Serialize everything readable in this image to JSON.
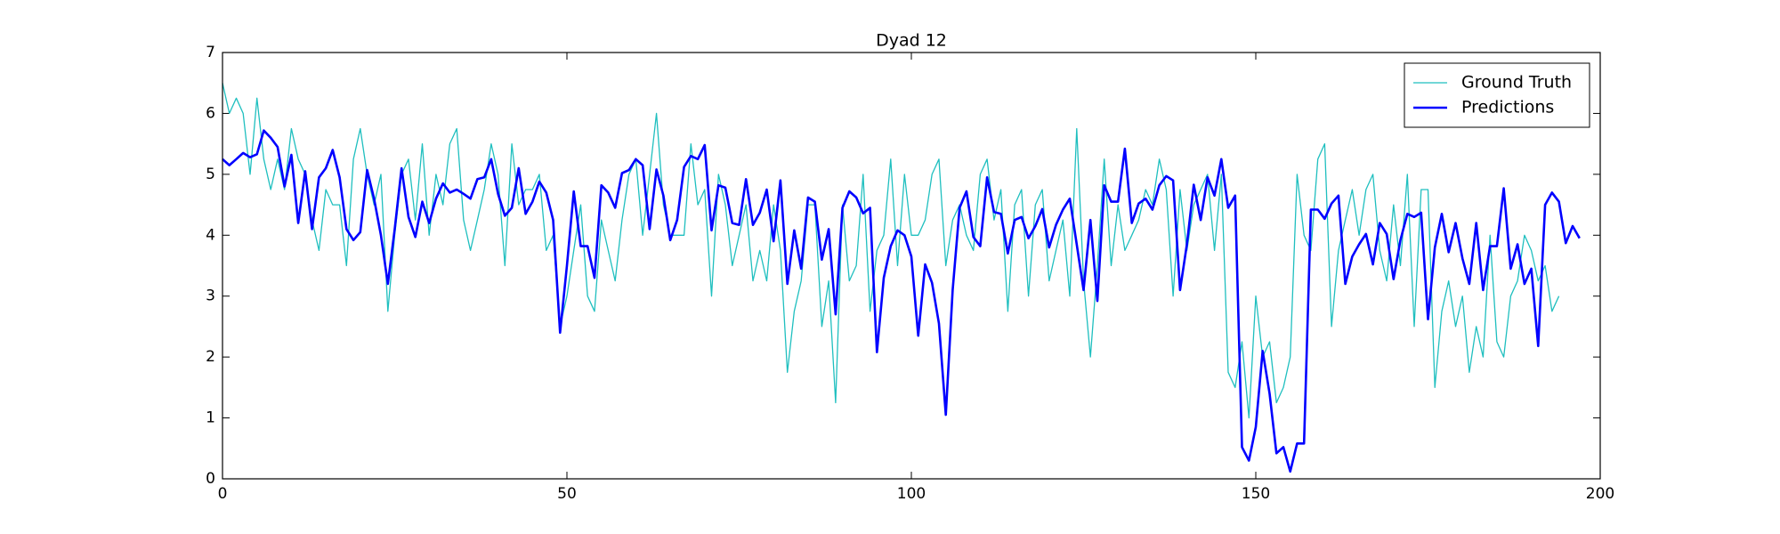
{
  "chart_data": {
    "type": "line",
    "title": "Dyad 12",
    "xlim": [
      0,
      200
    ],
    "xticks": [
      0,
      50,
      100,
      150,
      200
    ],
    "ylim": [
      0,
      7
    ],
    "yticks": [
      0,
      1,
      2,
      3,
      4,
      5,
      6,
      7
    ],
    "legend": "upper right",
    "series": [
      {
        "name": "Ground Truth",
        "color": "#1fbfbf",
        "values": [
          6.5,
          6.0,
          6.25,
          6.0,
          5.0,
          6.25,
          5.25,
          4.75,
          5.25,
          4.75,
          5.75,
          5.25,
          5.0,
          4.25,
          3.75,
          4.75,
          4.5,
          4.5,
          3.5,
          5.25,
          5.75,
          5.0,
          4.5,
          5.0,
          2.75,
          4.0,
          5.0,
          5.25,
          4.25,
          5.5,
          4.0,
          5.0,
          4.5,
          5.5,
          5.75,
          4.25,
          3.75,
          4.25,
          4.75,
          5.5,
          5.0,
          3.5,
          5.5,
          4.5,
          4.75,
          4.75,
          5.0,
          3.75,
          4.0,
          2.5,
          3.0,
          3.75,
          4.5,
          3.0,
          2.75,
          4.25,
          3.75,
          3.25,
          4.25,
          5.0,
          5.25,
          4.0,
          5.0,
          6.0,
          4.5,
          4.0,
          4.0,
          4.0,
          5.5,
          4.5,
          4.75,
          3.0,
          5.0,
          4.5,
          3.5,
          4.0,
          4.5,
          3.25,
          3.75,
          3.25,
          4.5,
          3.75,
          1.75,
          2.75,
          3.25,
          4.5,
          4.5,
          2.5,
          3.25,
          1.25,
          4.5,
          3.25,
          3.5,
          5.0,
          2.75,
          3.75,
          4.0,
          5.25,
          3.5,
          5.0,
          4.0,
          4.0,
          4.25,
          5.0,
          5.25,
          3.5,
          4.25,
          4.5,
          4.0,
          3.75,
          5.0,
          5.25,
          4.25,
          4.75,
          2.75,
          4.5,
          4.75,
          3.0,
          4.5,
          4.75,
          3.25,
          3.75,
          4.25,
          3.0,
          5.75,
          3.25,
          2.0,
          3.5,
          5.25,
          3.5,
          4.5,
          3.75,
          4.0,
          4.25,
          4.75,
          4.5,
          5.25,
          4.75,
          3.0,
          4.75,
          3.75,
          4.5,
          4.75,
          5.0,
          3.75,
          5.0,
          1.75,
          1.5,
          2.25,
          1.0,
          3.0,
          2.0,
          2.25,
          1.25,
          1.5,
          2.0,
          5.0,
          4.0,
          3.75,
          5.25,
          5.5,
          2.5,
          3.75,
          4.25,
          4.75,
          4.0,
          4.75,
          5.0,
          3.75,
          3.25,
          4.5,
          3.5,
          5.0,
          2.5,
          4.75,
          4.75,
          1.5,
          2.75,
          3.25,
          2.5,
          3.0,
          1.75,
          2.5,
          2.0,
          4.0,
          2.25,
          2.0,
          3.0,
          3.25,
          4.0,
          3.75,
          3.25,
          3.5,
          2.75,
          3.0
        ]
      },
      {
        "name": "Predictions",
        "color": "#0000ff",
        "values": [
          5.25,
          5.15,
          5.25,
          5.35,
          5.28,
          5.33,
          5.72,
          5.6,
          5.45,
          4.8,
          5.32,
          4.2,
          5.05,
          4.1,
          4.95,
          5.1,
          5.4,
          4.95,
          4.1,
          3.92,
          4.05,
          5.07,
          4.6,
          4.0,
          3.2,
          4.1,
          5.1,
          4.3,
          3.97,
          4.55,
          4.2,
          4.6,
          4.85,
          4.7,
          4.75,
          4.68,
          4.6,
          4.92,
          4.95,
          5.25,
          4.68,
          4.32,
          4.45,
          5.1,
          4.35,
          4.55,
          4.88,
          4.7,
          4.25,
          2.4,
          3.5,
          4.72,
          3.82,
          3.82,
          3.3,
          4.82,
          4.7,
          4.45,
          5.02,
          5.07,
          5.25,
          5.15,
          4.1,
          5.08,
          4.65,
          3.92,
          4.25,
          5.12,
          5.3,
          5.25,
          5.48,
          4.08,
          4.82,
          4.78,
          4.2,
          4.17,
          4.92,
          4.17,
          4.37,
          4.75,
          3.9,
          4.9,
          3.2,
          4.08,
          3.45,
          4.62,
          4.55,
          3.6,
          4.1,
          2.7,
          4.45,
          4.72,
          4.62,
          4.36,
          4.45,
          2.08,
          3.3,
          3.82,
          4.08,
          4.0,
          3.65,
          2.35,
          3.52,
          3.22,
          2.55,
          1.05,
          3.1,
          4.45,
          4.72,
          3.97,
          3.82,
          4.95,
          4.38,
          4.35,
          3.7,
          4.25,
          4.3,
          3.95,
          4.15,
          4.43,
          3.8,
          4.17,
          4.42,
          4.6,
          3.85,
          3.1,
          4.25,
          2.92,
          4.82,
          4.55,
          4.55,
          5.42,
          4.2,
          4.52,
          4.6,
          4.42,
          4.82,
          4.97,
          4.9,
          3.1,
          3.85,
          4.83,
          4.25,
          4.95,
          4.65,
          5.25,
          4.45,
          4.65,
          0.52,
          0.3,
          0.85,
          2.1,
          1.4,
          0.42,
          0.52,
          0.12,
          0.58,
          0.58,
          4.42,
          4.42,
          4.27,
          4.52,
          4.65,
          3.2,
          3.65,
          3.85,
          4.02,
          3.52,
          4.2,
          4.02,
          3.28,
          3.92,
          4.35,
          4.3,
          4.37,
          2.62,
          3.8,
          4.35,
          3.72,
          4.2,
          3.62,
          3.2,
          4.2,
          3.1,
          3.82,
          3.82,
          4.77,
          3.45,
          3.85,
          3.2,
          3.45,
          2.18,
          4.5,
          4.7,
          4.55,
          3.87,
          4.15,
          3.95
        ]
      }
    ]
  }
}
